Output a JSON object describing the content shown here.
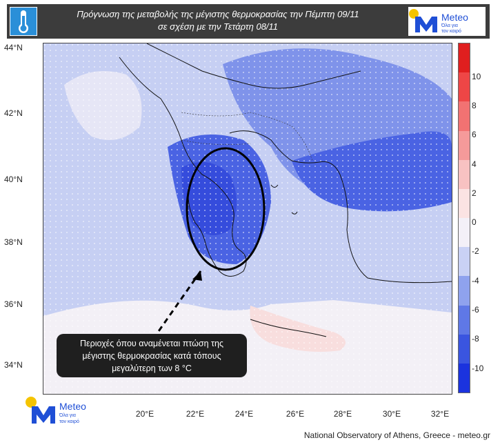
{
  "header": {
    "title_line1": "Πρόγνωση της μεταβολής της μέγιστης θερμοκρασίας την Πέμπτη 09/11",
    "title_line2": "σε σχέση με την Τετάρτη 08/11",
    "thermometer_icon": "thermometer-icon"
  },
  "logo": {
    "brand": "Meteo",
    "tagline_1": "Όλα για",
    "tagline_2": "τον καιρό",
    "colors": {
      "sun": "#f5c400",
      "mark": "#1f4fd6"
    }
  },
  "map": {
    "lat_labels": [
      "44°N",
      "42°N",
      "40°N",
      "38°N",
      "36°N",
      "34°N"
    ],
    "lon_labels": [
      "20°E",
      "22°E",
      "24°E",
      "26°E",
      "28°E",
      "30°E",
      "32°E"
    ],
    "colors": {
      "sea_neutral": "#f3f0f6",
      "cool_light": "#c6cff3",
      "cool_mid": "#7f93ea",
      "cool_strong": "#4a63e3",
      "warm_light": "#f8dede"
    }
  },
  "colorbar": {
    "ticks": [
      "10",
      "8",
      "6",
      "4",
      "2",
      "0",
      "-2",
      "-4",
      "-6",
      "-8",
      "-10"
    ],
    "colors": [
      "#e01f1f",
      "#ee4646",
      "#f27272",
      "#f59a9a",
      "#f8c2c2",
      "#fbe3e3",
      "#f3f0f8",
      "#c9d1f5",
      "#8fa2ee",
      "#5f78e6",
      "#3a55e0",
      "#1b33de"
    ]
  },
  "callout": {
    "line1": "Περιοχές όπου αναμένεται πτώση της",
    "line2": "μέγιστης θερμοκρασίας κατά τόπους",
    "line3": "μεγαλύτερη των 8 °C"
  },
  "footer": {
    "credit": "National Observatory of Athens, Greece - meteo.gr"
  }
}
